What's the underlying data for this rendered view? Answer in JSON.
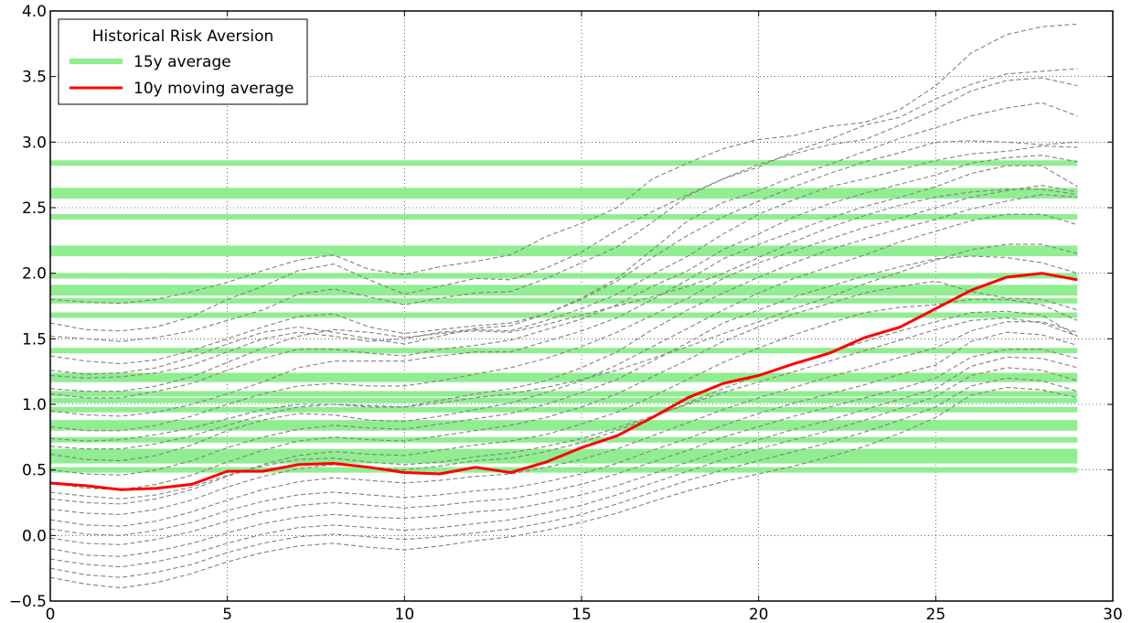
{
  "chart_data": {
    "type": "line",
    "title": "",
    "xlabel": "",
    "ylabel": "",
    "xlim": [
      0,
      30
    ],
    "ylim": [
      -0.5,
      4.0
    ],
    "xticks": [
      0,
      5,
      10,
      15,
      20,
      25,
      30
    ],
    "yticks": [
      -0.5,
      0.0,
      0.5,
      1.0,
      1.5,
      2.0,
      2.5,
      3.0,
      3.5,
      4.0
    ],
    "x_tick_labels": [
      "0",
      "5",
      "10",
      "15",
      "20",
      "25",
      "30"
    ],
    "y_tick_labels": [
      "−0.5",
      "0.0",
      "0.5",
      "1.0",
      "1.5",
      "2.0",
      "2.5",
      "3.0",
      "3.5",
      "4.0"
    ],
    "grid": true,
    "legend": {
      "title": "Historical Risk Aversion",
      "placement": "top-left",
      "entries": [
        {
          "label": "15y average",
          "color": "#90EE90"
        },
        {
          "label": "10y moving average",
          "color": "#FF0000"
        }
      ]
    },
    "x": [
      0,
      1,
      2,
      3,
      4,
      5,
      6,
      7,
      8,
      9,
      10,
      11,
      12,
      13,
      14,
      15,
      16,
      17,
      18,
      19,
      20,
      21,
      22,
      23,
      24,
      25,
      26,
      27,
      28,
      29
    ],
    "moving_average": {
      "name": "10y moving average",
      "color": "#FF0000",
      "values": [
        0.4,
        0.38,
        0.35,
        0.36,
        0.39,
        0.49,
        0.49,
        0.54,
        0.55,
        0.52,
        0.48,
        0.47,
        0.52,
        0.48,
        0.56,
        0.67,
        0.76,
        0.9,
        1.05,
        1.16,
        1.22,
        1.31,
        1.39,
        1.51,
        1.59,
        1.73,
        1.87,
        1.97,
        2.0,
        1.95
      ]
    },
    "averages": {
      "name": "15y average",
      "color": "#90EE90",
      "x_range": [
        0,
        29
      ],
      "values": [
        2.84,
        2.63,
        2.59,
        2.43,
        2.19,
        2.15,
        1.98,
        1.89,
        1.85,
        1.79,
        1.68,
        1.41,
        1.22,
        1.19,
        1.08,
        1.03,
        0.96,
        0.86,
        0.82,
        0.73,
        0.64,
        0.61,
        0.57,
        0.5
      ]
    },
    "paths": {
      "name": "simulated paths",
      "color": "#808080",
      "style": "dashed",
      "series": [
        [
          1.8,
          1.78,
          1.77,
          1.8,
          1.86,
          1.93,
          2.02,
          2.1,
          2.14,
          2.03,
          1.99,
          2.05,
          2.09,
          2.14,
          2.28,
          2.38,
          2.5,
          2.72,
          2.84,
          2.95,
          3.02,
          3.05,
          3.12,
          3.15,
          3.25,
          3.43,
          3.68,
          3.82,
          3.88,
          3.9
        ],
        [
          1.62,
          1.57,
          1.56,
          1.59,
          1.67,
          1.8,
          1.9,
          2.02,
          2.07,
          1.95,
          1.84,
          1.9,
          1.96,
          1.95,
          2.04,
          2.16,
          2.33,
          2.47,
          2.6,
          2.72,
          2.81,
          2.93,
          3.02,
          3.13,
          3.19,
          3.33,
          3.44,
          3.52,
          3.54,
          3.56
        ],
        [
          1.52,
          1.5,
          1.48,
          1.51,
          1.56,
          1.64,
          1.72,
          1.84,
          1.88,
          1.82,
          1.76,
          1.81,
          1.85,
          1.86,
          1.96,
          2.08,
          2.2,
          2.39,
          2.59,
          2.72,
          2.83,
          2.91,
          2.98,
          3.02,
          3.13,
          3.25,
          3.39,
          3.47,
          3.49,
          3.43
        ],
        [
          1.37,
          1.33,
          1.31,
          1.34,
          1.41,
          1.5,
          1.59,
          1.67,
          1.69,
          1.59,
          1.54,
          1.57,
          1.6,
          1.62,
          1.69,
          1.81,
          1.96,
          2.18,
          2.4,
          2.54,
          2.63,
          2.74,
          2.83,
          2.93,
          3.03,
          3.11,
          3.2,
          3.26,
          3.3,
          3.2
        ],
        [
          1.26,
          1.23,
          1.24,
          1.28,
          1.36,
          1.46,
          1.55,
          1.59,
          1.55,
          1.5,
          1.46,
          1.52,
          1.58,
          1.6,
          1.69,
          1.8,
          1.94,
          2.12,
          2.29,
          2.43,
          2.55,
          2.66,
          2.76,
          2.85,
          2.92,
          3.0,
          3.01,
          3.0,
          2.98,
          3.0
        ],
        [
          1.22,
          1.2,
          1.21,
          1.24,
          1.3,
          1.4,
          1.5,
          1.55,
          1.52,
          1.48,
          1.5,
          1.55,
          1.57,
          1.56,
          1.64,
          1.73,
          1.84,
          1.99,
          2.13,
          2.3,
          2.45,
          2.56,
          2.66,
          2.72,
          2.79,
          2.86,
          2.91,
          2.93,
          2.97,
          2.96
        ],
        [
          1.08,
          1.05,
          1.05,
          1.1,
          1.16,
          1.26,
          1.35,
          1.42,
          1.42,
          1.39,
          1.37,
          1.42,
          1.45,
          1.49,
          1.57,
          1.65,
          1.76,
          1.9,
          2.02,
          2.18,
          2.3,
          2.43,
          2.53,
          2.61,
          2.68,
          2.75,
          2.84,
          2.88,
          2.9,
          2.85
        ],
        [
          0.95,
          0.92,
          0.91,
          0.94,
          1.0,
          1.08,
          1.17,
          1.28,
          1.33,
          1.33,
          1.33,
          1.37,
          1.4,
          1.4,
          1.48,
          1.56,
          1.66,
          1.8,
          1.95,
          2.11,
          2.22,
          2.32,
          2.42,
          2.51,
          2.58,
          2.66,
          2.76,
          2.82,
          2.82,
          2.66
        ],
        [
          0.83,
          0.8,
          0.8,
          0.84,
          0.91,
          1.0,
          1.08,
          1.14,
          1.16,
          1.14,
          1.14,
          1.18,
          1.23,
          1.28,
          1.35,
          1.44,
          1.55,
          1.68,
          1.81,
          1.96,
          2.08,
          2.17,
          2.26,
          2.35,
          2.42,
          2.5,
          2.58,
          2.63,
          2.67,
          2.62
        ],
        [
          0.74,
          0.72,
          0.73,
          0.77,
          0.82,
          0.89,
          0.96,
          1.0,
          1.0,
          0.98,
          0.98,
          1.03,
          1.08,
          1.12,
          1.18,
          1.28,
          1.4,
          1.57,
          1.72,
          1.85,
          1.97,
          2.08,
          2.18,
          2.26,
          2.34,
          2.41,
          2.49,
          2.55,
          2.6,
          2.58
        ],
        [
          0.62,
          0.58,
          0.57,
          0.61,
          0.69,
          0.8,
          0.88,
          0.93,
          0.92,
          0.88,
          0.87,
          0.91,
          0.96,
          1.01,
          1.09,
          1.18,
          1.3,
          1.44,
          1.58,
          1.72,
          1.85,
          1.96,
          2.05,
          2.14,
          2.24,
          2.32,
          2.4,
          2.45,
          2.45,
          2.37
        ],
        [
          0.5,
          0.47,
          0.46,
          0.5,
          0.57,
          0.67,
          0.75,
          0.81,
          0.84,
          0.82,
          0.81,
          0.85,
          0.89,
          0.93,
          1.0,
          1.09,
          1.19,
          1.33,
          1.47,
          1.62,
          1.72,
          1.82,
          1.9,
          1.98,
          2.05,
          2.11,
          2.13,
          2.12,
          2.08,
          2.0
        ],
        [
          0.4,
          0.36,
          0.35,
          0.39,
          0.46,
          0.56,
          0.65,
          0.72,
          0.75,
          0.73,
          0.72,
          0.76,
          0.8,
          0.84,
          0.9,
          0.98,
          1.08,
          1.21,
          1.34,
          1.48,
          1.59,
          1.69,
          1.77,
          1.85,
          1.9,
          1.94,
          1.86,
          1.81,
          1.8,
          1.72
        ],
        [
          0.28,
          0.25,
          0.24,
          0.28,
          0.35,
          0.45,
          0.54,
          0.61,
          0.64,
          0.62,
          0.61,
          0.65,
          0.69,
          0.72,
          0.77,
          0.85,
          0.94,
          1.06,
          1.19,
          1.32,
          1.43,
          1.53,
          1.62,
          1.7,
          1.74,
          1.76,
          1.8,
          1.8,
          1.76,
          1.64
        ],
        [
          0.2,
          0.17,
          0.16,
          0.2,
          0.27,
          0.37,
          0.45,
          0.51,
          0.54,
          0.52,
          0.5,
          0.53,
          0.57,
          0.59,
          0.64,
          0.71,
          0.8,
          0.9,
          1.01,
          1.12,
          1.22,
          1.31,
          1.4,
          1.48,
          1.56,
          1.63,
          1.7,
          1.71,
          1.68,
          1.52
        ],
        [
          0.12,
          0.08,
          0.07,
          0.11,
          0.18,
          0.27,
          0.35,
          0.41,
          0.44,
          0.42,
          0.4,
          0.42,
          0.45,
          0.47,
          0.52,
          0.58,
          0.66,
          0.76,
          0.86,
          0.96,
          1.05,
          1.13,
          1.21,
          1.28,
          1.36,
          1.43,
          1.56,
          1.63,
          1.63,
          1.55
        ],
        [
          0.05,
          0.01,
          0.0,
          0.04,
          0.1,
          0.19,
          0.26,
          0.31,
          0.33,
          0.31,
          0.29,
          0.31,
          0.34,
          0.36,
          0.41,
          0.47,
          0.55,
          0.65,
          0.74,
          0.84,
          0.93,
          1.01,
          1.08,
          1.15,
          1.23,
          1.3,
          1.48,
          1.55,
          1.53,
          1.45
        ],
        [
          -0.02,
          -0.06,
          -0.07,
          -0.03,
          0.03,
          0.11,
          0.18,
          0.23,
          0.25,
          0.23,
          0.21,
          0.23,
          0.26,
          0.28,
          0.33,
          0.39,
          0.47,
          0.56,
          0.65,
          0.75,
          0.83,
          0.91,
          0.98,
          1.05,
          1.12,
          1.2,
          1.36,
          1.42,
          1.42,
          1.35
        ],
        [
          -0.1,
          -0.15,
          -0.16,
          -0.12,
          -0.06,
          0.02,
          0.09,
          0.14,
          0.16,
          0.14,
          0.13,
          0.15,
          0.18,
          0.2,
          0.25,
          0.31,
          0.38,
          0.47,
          0.56,
          0.65,
          0.73,
          0.81,
          0.88,
          0.96,
          1.04,
          1.12,
          1.29,
          1.36,
          1.35,
          1.28
        ],
        [
          -0.18,
          -0.22,
          -0.24,
          -0.2,
          -0.14,
          -0.06,
          0.01,
          0.06,
          0.08,
          0.06,
          0.04,
          0.06,
          0.09,
          0.12,
          0.17,
          0.23,
          0.31,
          0.4,
          0.49,
          0.58,
          0.66,
          0.73,
          0.8,
          0.88,
          0.97,
          1.06,
          1.22,
          1.28,
          1.26,
          1.18
        ],
        [
          -0.25,
          -0.3,
          -0.32,
          -0.28,
          -0.22,
          -0.13,
          -0.06,
          -0.01,
          0.01,
          -0.01,
          -0.03,
          -0.01,
          0.02,
          0.05,
          0.1,
          0.16,
          0.24,
          0.33,
          0.42,
          0.5,
          0.57,
          0.64,
          0.71,
          0.79,
          0.88,
          0.98,
          1.14,
          1.2,
          1.18,
          1.1
        ],
        [
          -0.32,
          -0.37,
          -0.4,
          -0.36,
          -0.29,
          -0.2,
          -0.13,
          -0.08,
          -0.06,
          -0.09,
          -0.11,
          -0.08,
          -0.04,
          -0.01,
          0.04,
          0.1,
          0.17,
          0.26,
          0.34,
          0.41,
          0.47,
          0.53,
          0.6,
          0.68,
          0.78,
          0.9,
          1.07,
          1.13,
          1.11,
          1.05
        ],
        [
          1.12,
          1.1,
          1.1,
          1.14,
          1.21,
          1.32,
          1.43,
          1.52,
          1.57,
          1.55,
          1.51,
          1.54,
          1.56,
          1.55,
          1.61,
          1.68,
          1.75,
          1.82,
          1.9,
          2.0,
          2.12,
          2.24,
          2.35,
          2.44,
          2.52,
          2.58,
          2.62,
          2.64,
          2.64,
          2.6
        ],
        [
          0.68,
          0.66,
          0.66,
          0.7,
          0.76,
          0.84,
          0.92,
          0.98,
          1.0,
          0.99,
          0.98,
          1.01,
          1.05,
          1.08,
          1.13,
          1.19,
          1.26,
          1.35,
          1.44,
          1.54,
          1.63,
          1.73,
          1.82,
          1.92,
          2.01,
          2.1,
          2.18,
          2.22,
          2.22,
          2.15
        ],
        [
          0.33,
          0.3,
          0.28,
          0.31,
          0.37,
          0.46,
          0.53,
          0.58,
          0.59,
          0.56,
          0.54,
          0.56,
          0.6,
          0.63,
          0.68,
          0.74,
          0.82,
          0.91,
          1.0,
          1.09,
          1.17,
          1.25,
          1.33,
          1.41,
          1.49,
          1.57,
          1.64,
          1.66,
          1.62,
          1.52
        ]
      ]
    }
  }
}
